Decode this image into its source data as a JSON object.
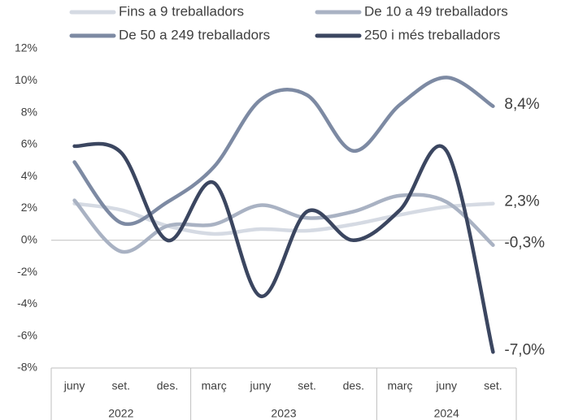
{
  "chart_data": {
    "type": "line",
    "categories": [
      "juny",
      "set.",
      "des.",
      "març",
      "juny",
      "set.",
      "des.",
      "març",
      "juny",
      "set."
    ],
    "x_groups": [
      {
        "label": "2022",
        "count": 3
      },
      {
        "label": "2023",
        "count": 4
      },
      {
        "label": "2024",
        "count": 3
      }
    ],
    "series": [
      {
        "name": "Fins a 9 treballadors",
        "color": "#d5dae3",
        "values": [
          2.3,
          1.9,
          0.9,
          0.4,
          0.7,
          0.6,
          1.0,
          1.6,
          2.1,
          2.3
        ],
        "value_labels": [
          null,
          null,
          null,
          null,
          null,
          null,
          null,
          null,
          null,
          "2,3%"
        ]
      },
      {
        "name": "De 10 a 49 treballadors",
        "color": "#a9b2c3",
        "values": [
          2.5,
          -0.7,
          0.9,
          1.0,
          2.2,
          1.4,
          1.8,
          2.8,
          2.4,
          -0.3
        ],
        "value_labels": [
          null,
          null,
          null,
          null,
          null,
          null,
          null,
          null,
          null,
          "-0,3%"
        ]
      },
      {
        "name": "De 50 a 249 treballadors",
        "color": "#7d8aa3",
        "values": [
          4.9,
          1.1,
          2.4,
          4.6,
          8.8,
          9.1,
          5.6,
          8.5,
          10.2,
          8.4
        ],
        "value_labels": [
          null,
          null,
          null,
          null,
          null,
          null,
          null,
          null,
          null,
          "8,4%"
        ]
      },
      {
        "name": "250 i més treballadors",
        "color": "#3b4660",
        "values": [
          5.9,
          5.5,
          0.0,
          3.6,
          -3.5,
          1.8,
          0.0,
          1.9,
          5.6,
          -7.0
        ],
        "value_labels": [
          null,
          null,
          null,
          null,
          null,
          null,
          null,
          null,
          null,
          "-7,0%"
        ]
      }
    ],
    "ylim": [
      -8,
      12
    ],
    "yticks": [
      {
        "value": -8,
        "label": "-8%"
      },
      {
        "value": -6,
        "label": "-6%"
      },
      {
        "value": -4,
        "label": "-4%"
      },
      {
        "value": -2,
        "label": "-2%"
      },
      {
        "value": 0,
        "label": "0%"
      },
      {
        "value": 2,
        "label": "2%"
      },
      {
        "value": 4,
        "label": "4%"
      },
      {
        "value": 6,
        "label": "6%"
      },
      {
        "value": 8,
        "label": "8%"
      },
      {
        "value": 10,
        "label": "10%"
      },
      {
        "value": 12,
        "label": "12%"
      }
    ],
    "grid": false,
    "smooth": true,
    "legend": "top"
  }
}
